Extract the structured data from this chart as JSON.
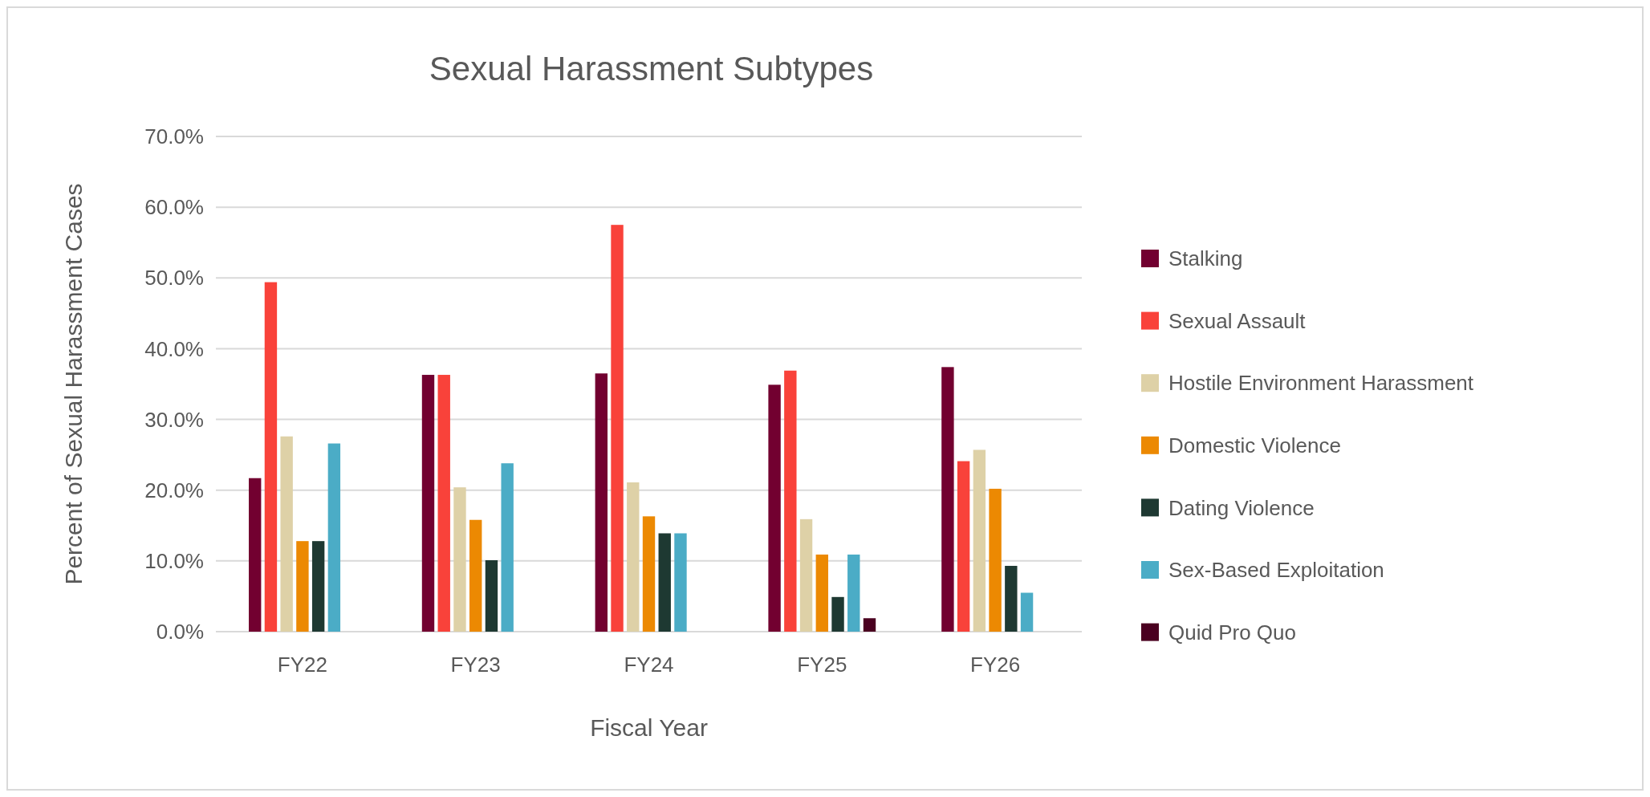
{
  "chart_data": {
    "type": "bar",
    "title": "Sexual Harassment Subtypes",
    "xlabel": "Fiscal Year",
    "ylabel": "Percent of Sexual Harassment Cases",
    "categories": [
      "FY22",
      "FY23",
      "FY24",
      "FY25",
      "FY26"
    ],
    "series": [
      {
        "name": "Stalking",
        "color": "#720030",
        "values": [
          21.7,
          36.3,
          36.5,
          34.9,
          37.4
        ]
      },
      {
        "name": "Sexual Assault",
        "color": "#f9423a",
        "values": [
          49.4,
          36.3,
          57.5,
          36.9,
          24.1
        ]
      },
      {
        "name": "Hostile Environment Harassment",
        "color": "#ded1a7",
        "values": [
          27.6,
          20.4,
          21.1,
          15.9,
          25.7
        ]
      },
      {
        "name": "Domestic Violence",
        "color": "#ec8902",
        "values": [
          12.8,
          15.8,
          16.3,
          10.9,
          20.2
        ]
      },
      {
        "name": "Dating Violence",
        "color": "#1e3932",
        "values": [
          12.8,
          10.1,
          13.9,
          4.9,
          9.3
        ]
      },
      {
        "name": "Sex-Based Exploitation",
        "color": "#4bacc6",
        "values": [
          26.6,
          23.8,
          13.9,
          10.9,
          5.5
        ]
      },
      {
        "name": "Quid Pro Quo",
        "color": "#4a0020",
        "values": [
          null,
          null,
          null,
          1.9,
          null
        ]
      }
    ],
    "ylim": [
      0,
      70
    ],
    "yticks": [
      {
        "value": 0,
        "label": "0.0%"
      },
      {
        "value": 10,
        "label": "10.0%"
      },
      {
        "value": 20,
        "label": "20.0%"
      },
      {
        "value": 30,
        "label": "30.0%"
      },
      {
        "value": 40,
        "label": "40.0%"
      },
      {
        "value": 50,
        "label": "50.0%"
      },
      {
        "value": 60,
        "label": "60.0%"
      },
      {
        "value": 70,
        "label": "70.0%"
      }
    ],
    "grid": "y",
    "legend": "right"
  }
}
